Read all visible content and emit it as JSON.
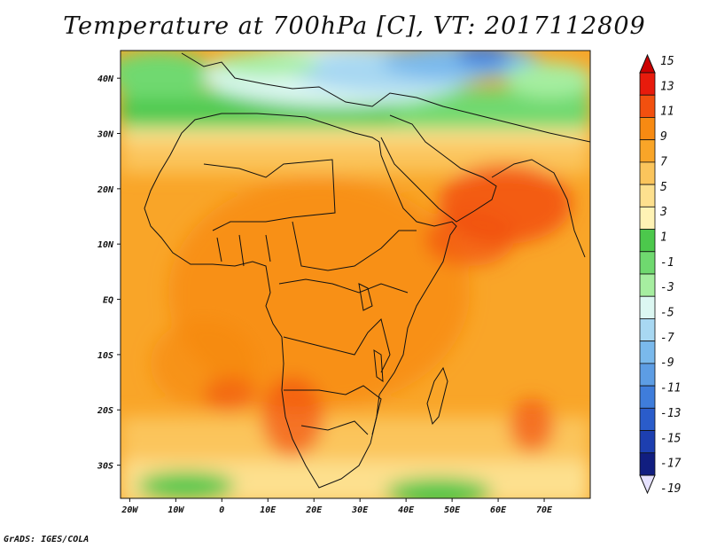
{
  "title": "Temperature at 700hPa [C], VT: 2017112809",
  "credit": "GrADS: IGES/COLA",
  "map": {
    "lon_range": [
      -22,
      80
    ],
    "lat_range": [
      -36,
      45
    ],
    "x_ticks": [
      {
        "lon": -20,
        "label": "20W"
      },
      {
        "lon": -10,
        "label": "10W"
      },
      {
        "lon": 0,
        "label": "0"
      },
      {
        "lon": 10,
        "label": "10E"
      },
      {
        "lon": 20,
        "label": "20E"
      },
      {
        "lon": 30,
        "label": "30E"
      },
      {
        "lon": 40,
        "label": "40E"
      },
      {
        "lon": 50,
        "label": "50E"
      },
      {
        "lon": 60,
        "label": "60E"
      },
      {
        "lon": 70,
        "label": "70E"
      }
    ],
    "y_ticks": [
      {
        "lat": 40,
        "label": "40N"
      },
      {
        "lat": 30,
        "label": "30N"
      },
      {
        "lat": 20,
        "label": "20N"
      },
      {
        "lat": 10,
        "label": "10N"
      },
      {
        "lat": 0,
        "label": "EQ"
      },
      {
        "lat": -10,
        "label": "10S"
      },
      {
        "lat": -20,
        "label": "20S"
      },
      {
        "lat": -30,
        "label": "30S"
      }
    ]
  },
  "colorbar": {
    "labels": [
      "15",
      "13",
      "11",
      "9",
      "7",
      "5",
      "3",
      "1",
      "-1",
      "-3",
      "-5",
      "-7",
      "-9",
      "-11",
      "-13",
      "-15",
      "-17",
      "-19"
    ],
    "colors": [
      "#e81b0c",
      "#f2500f",
      "#f78a12",
      "#f9a528",
      "#fbc55c",
      "#fde08e",
      "#fff3b5",
      "#4cc84c",
      "#6fd96f",
      "#a6eea0",
      "#dcf7f2",
      "#a8d8f2",
      "#7ab9ec",
      "#5d9de4",
      "#3f7ddb",
      "#2a5cca",
      "#1d3fb0",
      "#111e80"
    ],
    "top_arrow_color": "#cc0000",
    "bottom_arrow_color": "#e6e2ff"
  }
}
